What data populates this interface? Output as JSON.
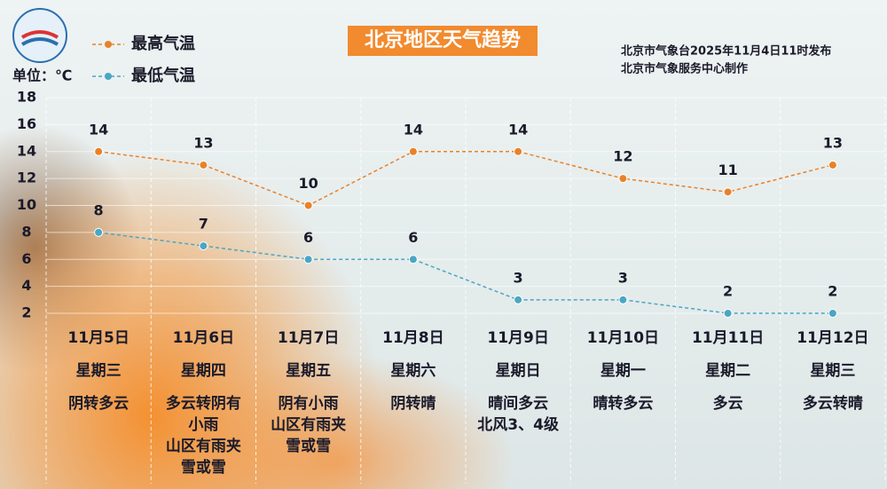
{
  "chart_data": {
    "type": "line",
    "title": "北京地区天气趋势",
    "subtitle": [
      "北京市气象台2025年11月4日11时发布",
      "北京市气象服务中心制作"
    ],
    "unit_label": "单位：℃",
    "categories": [
      "11月5日",
      "11月6日",
      "11月7日",
      "11月8日",
      "11月9日",
      "11月10日",
      "11月11日",
      "11月12日"
    ],
    "weekdays": [
      "星期三",
      "星期四",
      "星期五",
      "星期六",
      "星期日",
      "星期一",
      "星期二",
      "星期三"
    ],
    "weather": [
      [
        "阴转多云"
      ],
      [
        "多云转阴有",
        "小雨",
        "山区有雨夹",
        "雪或雪"
      ],
      [
        "阴有小雨",
        "山区有雨夹",
        "雪或雪"
      ],
      [
        "阴转晴"
      ],
      [
        "晴间多云",
        "北风3、4级"
      ],
      [
        "晴转多云"
      ],
      [
        "多云"
      ],
      [
        "多云转晴"
      ]
    ],
    "series": [
      {
        "name": "最高气温",
        "color": "#e8822a",
        "values": [
          14,
          13,
          10,
          14,
          14,
          12,
          11,
          13
        ]
      },
      {
        "name": "最低气温",
        "color": "#4aa6c4",
        "values": [
          8,
          7,
          6,
          6,
          3,
          3,
          2,
          2
        ]
      }
    ],
    "ylim": [
      2,
      18
    ],
    "yticks": [
      2,
      4,
      6,
      8,
      10,
      12,
      14,
      16,
      18
    ],
    "grid": true,
    "legend": "top-left"
  }
}
